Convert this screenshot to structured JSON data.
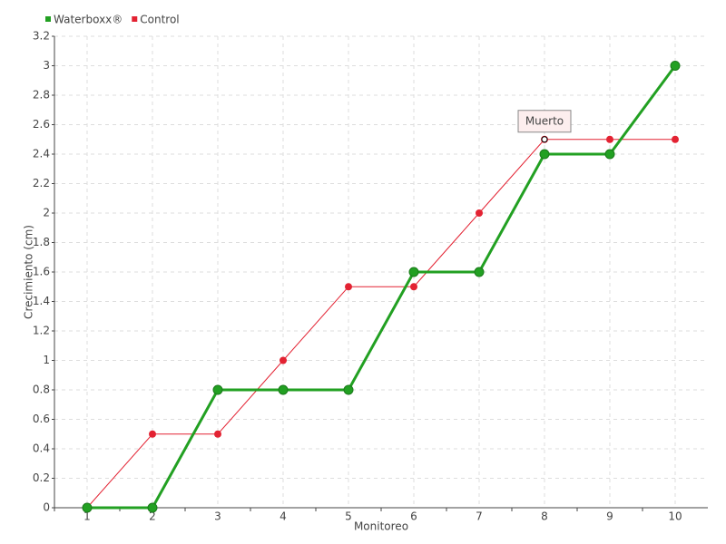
{
  "chart_data": {
    "type": "line",
    "x_label": "Monitoreo",
    "y_label": "Crecimiento (cm)",
    "categories": [
      "1",
      "2",
      "3",
      "4",
      "5",
      "6",
      "7",
      "8",
      "9",
      "10"
    ],
    "series": [
      {
        "name": "Waterboxx®",
        "color": "#22a022",
        "values": [
          0,
          0,
          0.8,
          0.8,
          0.8,
          1.6,
          1.6,
          2.4,
          2.4,
          3.0
        ]
      },
      {
        "name": "Control",
        "color": "#e32232",
        "values": [
          0,
          0.5,
          0.5,
          1.0,
          1.5,
          1.5,
          2.0,
          2.5,
          2.5,
          2.5
        ]
      }
    ],
    "annotation": "Muerto",
    "ylim": [
      0,
      3.2
    ],
    "yticks": [
      0,
      0.2,
      0.4,
      0.6,
      0.8,
      1,
      1.2,
      1.4,
      1.6,
      1.8,
      2,
      2.2,
      2.4,
      2.6,
      2.8,
      3,
      3.2
    ],
    "grid": true,
    "legend": "top-left"
  }
}
